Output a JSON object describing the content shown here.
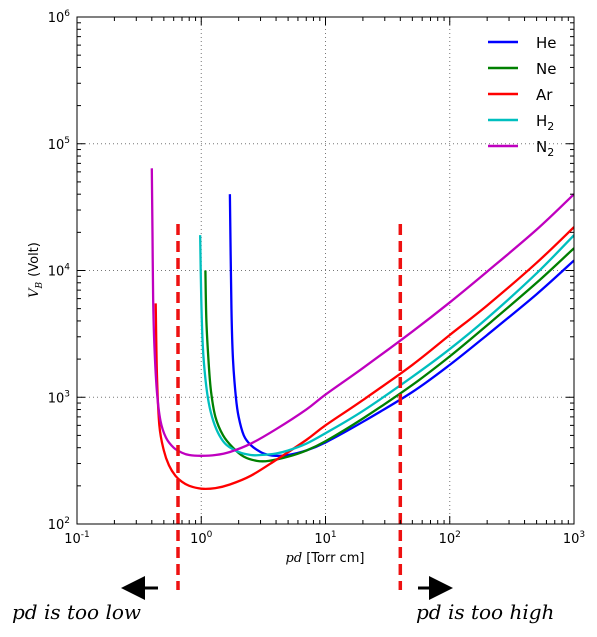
{
  "chart_data": {
    "type": "line",
    "xlabel_var": "pd",
    "xlabel_unit": "[Torr cm]",
    "ylabel_var": "V",
    "ylabel_sub": "B",
    "ylabel_unit": "(Volt)",
    "x_scale": "log",
    "y_scale": "log",
    "xlim": [
      0.1,
      1000
    ],
    "ylim": [
      100,
      1000000
    ],
    "grid": true,
    "legend_position": "top-right",
    "x_ticks": [
      {
        "value": 0.1,
        "base": "10",
        "exp": "-1"
      },
      {
        "value": 1,
        "base": "10",
        "exp": "0"
      },
      {
        "value": 10,
        "base": "10",
        "exp": "1"
      },
      {
        "value": 100,
        "base": "10",
        "exp": "2"
      },
      {
        "value": 1000,
        "base": "10",
        "exp": "3"
      }
    ],
    "y_ticks": [
      {
        "value": 100,
        "base": "10",
        "exp": "2"
      },
      {
        "value": 1000,
        "base": "10",
        "exp": "3"
      },
      {
        "value": 10000,
        "base": "10",
        "exp": "4"
      },
      {
        "value": 100000,
        "base": "10",
        "exp": "5"
      },
      {
        "value": 1000000,
        "base": "10",
        "exp": "6"
      }
    ],
    "series": [
      {
        "name": "He",
        "sub": "",
        "color": "#0000ff",
        "x": [
          1.7,
          1.75,
          1.8,
          1.9,
          2.0,
          2.2,
          2.5,
          3.0,
          3.5,
          4.0,
          5.0,
          7.0,
          10,
          20,
          50,
          100,
          200,
          500,
          1000
        ],
        "y": [
          40000,
          5000,
          2000,
          1000,
          700,
          500,
          420,
          370,
          350,
          345,
          350,
          380,
          440,
          640,
          1100,
          1800,
          3100,
          6500,
          12000
        ]
      },
      {
        "name": "Ne",
        "sub": "",
        "color": "#008000",
        "x": [
          1.08,
          1.1,
          1.15,
          1.2,
          1.3,
          1.5,
          1.8,
          2.2,
          2.8,
          3.5,
          5,
          7,
          10,
          20,
          50,
          100,
          200,
          500,
          1000
        ],
        "y": [
          10000,
          4000,
          1800,
          1100,
          700,
          500,
          400,
          340,
          315,
          315,
          340,
          380,
          450,
          680,
          1250,
          2100,
          3700,
          8000,
          15000
        ]
      },
      {
        "name": "Ar",
        "sub": "",
        "color": "#ff0000",
        "x": [
          0.43,
          0.44,
          0.46,
          0.5,
          0.55,
          0.62,
          0.7,
          0.8,
          1.0,
          1.3,
          1.7,
          2.5,
          4,
          7,
          10,
          20,
          50,
          100,
          200,
          500,
          1000
        ],
        "y": [
          5500,
          1500,
          600,
          380,
          290,
          240,
          215,
          200,
          190,
          192,
          205,
          240,
          320,
          460,
          600,
          950,
          1800,
          3100,
          5300,
          11500,
          22000
        ]
      },
      {
        "name": "H",
        "sub": "2",
        "color": "#00bfbf",
        "x": [
          0.98,
          1.0,
          1.03,
          1.08,
          1.15,
          1.25,
          1.4,
          1.6,
          2.0,
          2.5,
          3.0,
          4.0,
          5.0,
          7,
          10,
          20,
          50,
          100,
          200,
          500,
          1000
        ],
        "y": [
          19000,
          6000,
          2500,
          1400,
          900,
          650,
          500,
          420,
          370,
          350,
          350,
          360,
          380,
          430,
          520,
          780,
          1450,
          2400,
          4200,
          9500,
          19000
        ]
      },
      {
        "name": "N",
        "sub": "2",
        "color": "#bf00bf",
        "x": [
          0.4,
          0.405,
          0.41,
          0.42,
          0.44,
          0.47,
          0.52,
          0.6,
          0.7,
          0.8,
          1.0,
          1.3,
          1.7,
          2.5,
          4,
          7,
          10,
          20,
          50,
          100,
          200,
          500,
          1000
        ],
        "y": [
          64000,
          20000,
          6000,
          2500,
          1100,
          650,
          480,
          400,
          365,
          350,
          345,
          350,
          370,
          430,
          560,
          800,
          1050,
          1700,
          3300,
          5600,
          9800,
          21000,
          40000
        ]
      }
    ],
    "thresholds": [
      0.65,
      40
    ],
    "annotations": {
      "low": "pd is too low",
      "high": "pd is too high"
    }
  }
}
